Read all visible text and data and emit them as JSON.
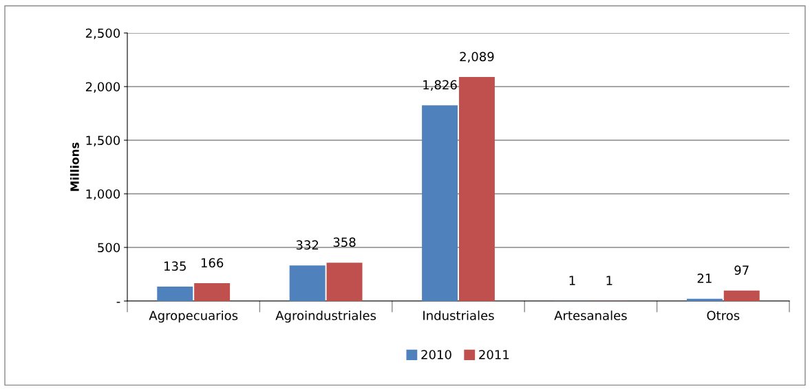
{
  "chart_data": {
    "type": "bar",
    "ylabel": "Millions",
    "categories": [
      "Agropecuarios",
      "Agroindustriales",
      "Industriales",
      "Artesanales",
      "Otros"
    ],
    "series": [
      {
        "name": "2010",
        "color": "#4f81bd",
        "values": [
          135,
          332,
          1826,
          1,
          21
        ],
        "value_labels": [
          "135",
          "332",
          "1,826",
          "1",
          "21"
        ]
      },
      {
        "name": "2011",
        "color": "#c0504d",
        "values": [
          166,
          358,
          2089,
          1,
          97
        ],
        "value_labels": [
          "166",
          "358",
          "2,089",
          "1",
          "97"
        ]
      }
    ],
    "ylim": [
      0,
      2500
    ],
    "yticks": [
      {
        "value": 0,
        "label": "-"
      },
      {
        "value": 500,
        "label": "500"
      },
      {
        "value": 1000,
        "label": "1,000"
      },
      {
        "value": 1500,
        "label": "1,500"
      },
      {
        "value": 2000,
        "label": "2,000"
      },
      {
        "value": 2500,
        "label": "2,500"
      }
    ],
    "grid": "y",
    "legend": "bottom"
  }
}
